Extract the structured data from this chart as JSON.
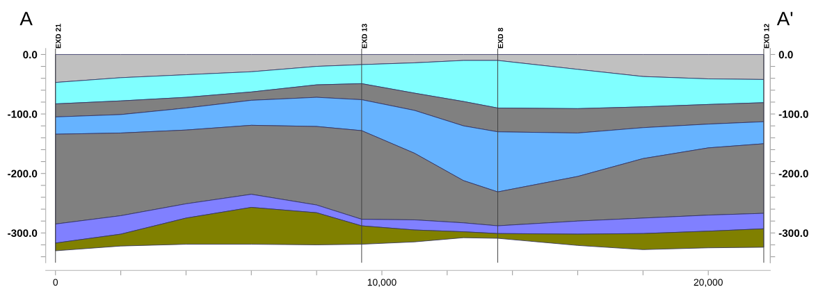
{
  "chart_data": {
    "type": "area",
    "stacked": true,
    "x": [
      0,
      2000,
      4000,
      6000,
      8000,
      9380,
      11000,
      12500,
      13550,
      16000,
      18000,
      20000,
      21700
    ],
    "series": [
      {
        "color": "#c0c0c0",
        "values": [
          -47,
          -39,
          -34,
          -29,
          -20,
          -17,
          -14,
          -10,
          -10,
          -25,
          -37,
          -41,
          -42
        ]
      },
      {
        "color": "#80ffff",
        "values": [
          -36,
          -39,
          -38,
          -34,
          -31,
          -32,
          -51,
          -69,
          -80,
          -66,
          -51,
          -43,
          -39
        ]
      },
      {
        "color": "#808080",
        "values": [
          -22,
          -23,
          -18,
          -14,
          -21,
          -27,
          -29,
          -41,
          -40,
          -41,
          -35,
          -33,
          -32
        ]
      },
      {
        "color": "#66b3ff",
        "values": [
          -29,
          -31,
          -37,
          -42,
          -49,
          -52,
          -72,
          -92,
          -101,
          -73,
          -52,
          -40,
          -37
        ]
      },
      {
        "color": "#808080",
        "values": [
          -151,
          -139,
          -124,
          -116,
          -132,
          -149,
          -112,
          -71,
          -57,
          -75,
          -100,
          -113,
          -117
        ]
      },
      {
        "color": "#8080ff",
        "values": [
          -32,
          -31,
          -24,
          -22,
          -13,
          -11,
          -17,
          -15,
          -13,
          -22,
          -26,
          -27,
          -26
        ]
      },
      {
        "color": "#808000",
        "values": [
          -13,
          -20,
          -44,
          -62,
          -54,
          -31,
          -20,
          -10,
          -8,
          -19,
          -27,
          -28,
          -31
        ]
      }
    ],
    "xlim": [
      -300,
      21900
    ],
    "ylim": [
      -350,
      10
    ],
    "y2lim": [
      -350,
      10
    ],
    "xticks": [
      {
        "value": 0,
        "label": "0"
      },
      {
        "value": 2000,
        "label": null
      },
      {
        "value": 4000,
        "label": null
      },
      {
        "value": 6000,
        "label": null
      },
      {
        "value": 8000,
        "label": null
      },
      {
        "value": 10000,
        "label": "10,000"
      },
      {
        "value": 12000,
        "label": null
      },
      {
        "value": 14000,
        "label": null
      },
      {
        "value": 16000,
        "label": null
      },
      {
        "value": 18000,
        "label": null
      },
      {
        "value": 20000,
        "label": "20,000"
      }
    ],
    "yticks": [
      {
        "value": 0,
        "label": "0.0"
      },
      {
        "value": -20,
        "label": null
      },
      {
        "value": -40,
        "label": null
      },
      {
        "value": -60,
        "label": null
      },
      {
        "value": -80,
        "label": null
      },
      {
        "value": -100,
        "label": "-100.0"
      },
      {
        "value": -120,
        "label": null
      },
      {
        "value": -140,
        "label": null
      },
      {
        "value": -160,
        "label": null
      },
      {
        "value": -180,
        "label": null
      },
      {
        "value": -200,
        "label": "-200.0"
      },
      {
        "value": -220,
        "label": null
      },
      {
        "value": -240,
        "label": null
      },
      {
        "value": -260,
        "label": null
      },
      {
        "value": -280,
        "label": null
      },
      {
        "value": -300,
        "label": "-300.0"
      },
      {
        "value": -320,
        "label": null
      },
      {
        "value": -340,
        "label": null
      }
    ],
    "y2ticks": [
      {
        "value": 0,
        "label": "0.0"
      },
      {
        "value": -20,
        "label": null
      },
      {
        "value": -40,
        "label": null
      },
      {
        "value": -60,
        "label": null
      },
      {
        "value": -80,
        "label": null
      },
      {
        "value": -100,
        "label": "-100.0"
      },
      {
        "value": -120,
        "label": null
      },
      {
        "value": -140,
        "label": null
      },
      {
        "value": -160,
        "label": null
      },
      {
        "value": -180,
        "label": null
      },
      {
        "value": -200,
        "label": "-200.0"
      },
      {
        "value": -220,
        "label": null
      },
      {
        "value": -240,
        "label": null
      },
      {
        "value": -260,
        "label": null
      },
      {
        "value": -280,
        "label": null
      },
      {
        "value": -300,
        "label": "-300.0"
      },
      {
        "value": -320,
        "label": null
      },
      {
        "value": -340,
        "label": null
      }
    ],
    "ref_lines": [
      {
        "axis": "x",
        "value": 0,
        "label": "EXD 21",
        "color": "#404040"
      },
      {
        "axis": "x",
        "value": 9380,
        "label": "EXD 13",
        "color": "#404040"
      },
      {
        "axis": "x",
        "value": 13550,
        "label": "EXD 8",
        "color": "#404040"
      },
      {
        "axis": "x",
        "value": 21700,
        "label": "EXD 12",
        "color": "#404040"
      }
    ],
    "annotations": [
      "A",
      "A'"
    ],
    "grid": false,
    "legend": false
  }
}
